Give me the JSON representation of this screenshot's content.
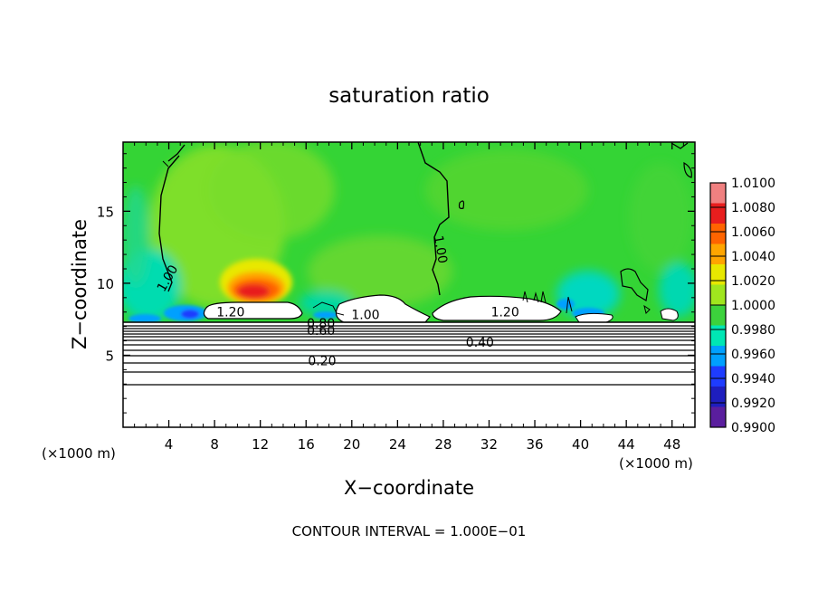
{
  "chart_data": {
    "type": "heatmap",
    "title": "saturation ratio",
    "xlabel": "X−coordinate",
    "ylabel": "Z−coordinate",
    "x_unit_left": "(×1000 m)",
    "x_unit_right": "(×1000 m)",
    "xlim": [
      0,
      50
    ],
    "ylim": [
      0,
      19.8
    ],
    "x_ticks": [
      4,
      8,
      12,
      16,
      20,
      24,
      28,
      32,
      36,
      40,
      44,
      48
    ],
    "x_tick_labels": [
      "4",
      "8",
      "12",
      "16",
      "20",
      "24",
      "28",
      "32",
      "36",
      "40",
      "44",
      "48"
    ],
    "y_ticks": [
      5,
      10,
      15
    ],
    "y_tick_labels": [
      "5",
      "10",
      "15"
    ],
    "footnote": "CONTOUR INTERVAL = 1.000E−01",
    "colorbar": {
      "min": 0.99,
      "max": 1.01,
      "tick_values": [
        1.01,
        1.008,
        1.006,
        1.004,
        1.002,
        1.0,
        0.998,
        0.996,
        0.994,
        0.992,
        0.99
      ],
      "tick_labels": [
        "1.0100",
        "1.0080",
        "1.0060",
        "1.0040",
        "1.0020",
        "1.0000",
        "0.9980",
        "0.9960",
        "0.9940",
        "0.9920",
        "0.9900"
      ],
      "colors": [
        "#f08080",
        "#e81e1e",
        "#ff6400",
        "#ffa500",
        "#e8e800",
        "#a0e61e",
        "#3cd23c",
        "#00e6b4",
        "#00a0ff",
        "#1e3cff",
        "#1e1ebe",
        "#5a1e9e"
      ]
    },
    "contour_labels": [
      {
        "text": "1.00",
        "x": 4.2,
        "y": 10.2,
        "rotate": -60
      },
      {
        "text": "1.00",
        "x": 27.4,
        "y": 12.3,
        "rotate": 80
      },
      {
        "text": "1.20",
        "x": 9.4,
        "y": 7.7,
        "rotate": 0
      },
      {
        "text": "1.20",
        "x": 33.4,
        "y": 7.7,
        "rotate": 0
      },
      {
        "text": "1.00",
        "x": 21.2,
        "y": 7.5,
        "rotate": 0
      },
      {
        "text": "0.80",
        "x": 17.3,
        "y": 6.9,
        "rotate": 0
      },
      {
        "text": "0.60",
        "x": 17.3,
        "y": 6.4,
        "rotate": 0
      },
      {
        "text": "0.40",
        "x": 31.2,
        "y": 5.6,
        "rotate": 0
      },
      {
        "text": "0.20",
        "x": 17.4,
        "y": 4.3,
        "rotate": 0
      }
    ]
  }
}
